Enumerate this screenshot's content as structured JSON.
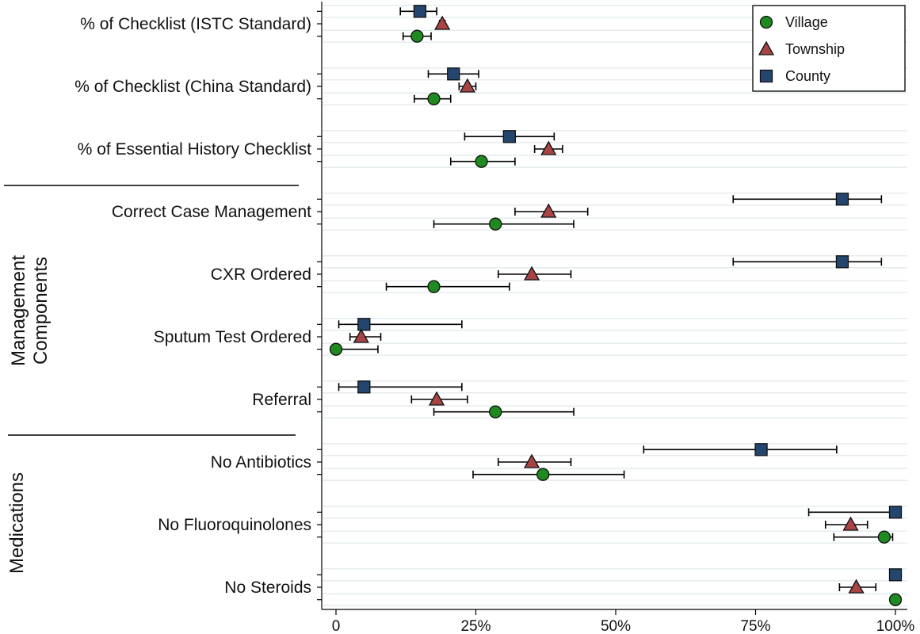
{
  "chart_data": {
    "type": "scatter",
    "orientation": "horizontal",
    "grid": true,
    "legend_position": "top-right",
    "xlim": [
      0,
      100
    ],
    "x_ticks": [
      0,
      25,
      50,
      75,
      100
    ],
    "x_tick_labels": [
      "0",
      "25%",
      "50%",
      "75%",
      "100%"
    ],
    "series": [
      {
        "name": "Village",
        "marker": "circle",
        "color": "#1f8a1f"
      },
      {
        "name": "Township",
        "marker": "triangle",
        "color": "#a84444"
      },
      {
        "name": "County",
        "marker": "square",
        "color": "#24466e"
      }
    ],
    "section_labels": [
      "Management Components",
      "Medications"
    ],
    "categories": [
      {
        "label": "% of Checklist (ISTC Standard)",
        "County": {
          "value": 15,
          "ci": [
            11.5,
            18
          ]
        },
        "Township": {
          "value": 19,
          "ci": [
            18.5,
            19.5
          ]
        },
        "Village": {
          "value": 14.5,
          "ci": [
            12,
            17
          ]
        }
      },
      {
        "label": "% of Checklist (China Standard)",
        "County": {
          "value": 21,
          "ci": [
            16.5,
            25.5
          ]
        },
        "Township": {
          "value": 23.5,
          "ci": [
            22,
            25
          ]
        },
        "Village": {
          "value": 17.5,
          "ci": [
            14,
            20.5
          ]
        }
      },
      {
        "label": "% of Essential History Checklist",
        "County": {
          "value": 31,
          "ci": [
            23,
            39
          ]
        },
        "Township": {
          "value": 38,
          "ci": [
            35.5,
            40.5
          ]
        },
        "Village": {
          "value": 26,
          "ci": [
            20.5,
            32
          ]
        }
      },
      {
        "label": "Correct Case Management",
        "County": {
          "value": 90.5,
          "ci": [
            71,
            97.5
          ]
        },
        "Township": {
          "value": 38,
          "ci": [
            32,
            45
          ]
        },
        "Village": {
          "value": 28.5,
          "ci": [
            17.5,
            42.5
          ]
        }
      },
      {
        "label": "CXR Ordered",
        "County": {
          "value": 90.5,
          "ci": [
            71,
            97.5
          ]
        },
        "Township": {
          "value": 35,
          "ci": [
            29,
            42
          ]
        },
        "Village": {
          "value": 17.5,
          "ci": [
            9,
            31
          ]
        }
      },
      {
        "label": "Sputum Test Ordered",
        "County": {
          "value": 5,
          "ci": [
            0.5,
            22.5
          ]
        },
        "Township": {
          "value": 4.5,
          "ci": [
            2.5,
            8
          ]
        },
        "Village": {
          "value": 0,
          "ci": [
            0,
            7.5
          ]
        }
      },
      {
        "label": "Referral",
        "County": {
          "value": 5,
          "ci": [
            0.5,
            22.5
          ]
        },
        "Township": {
          "value": 18,
          "ci": [
            13.5,
            23.5
          ]
        },
        "Village": {
          "value": 28.5,
          "ci": [
            17.5,
            42.5
          ]
        }
      },
      {
        "label": "No Antibiotics",
        "County": {
          "value": 76,
          "ci": [
            55,
            89.5
          ]
        },
        "Township": {
          "value": 35,
          "ci": [
            29,
            42
          ]
        },
        "Village": {
          "value": 37,
          "ci": [
            24.5,
            51.5
          ]
        }
      },
      {
        "label": "No Fluoroquinolones",
        "County": {
          "value": 100,
          "ci": [
            84.5,
            100
          ]
        },
        "Township": {
          "value": 92,
          "ci": [
            87.5,
            95
          ]
        },
        "Village": {
          "value": 98,
          "ci": [
            89,
            99.5
          ]
        }
      },
      {
        "label": "No Steroids",
        "County": {
          "value": 100,
          "ci": [
            100,
            100
          ]
        },
        "Township": {
          "value": 93,
          "ci": [
            90,
            96.5
          ]
        },
        "Village": {
          "value": 100,
          "ci": [
            100,
            100
          ]
        }
      }
    ]
  }
}
